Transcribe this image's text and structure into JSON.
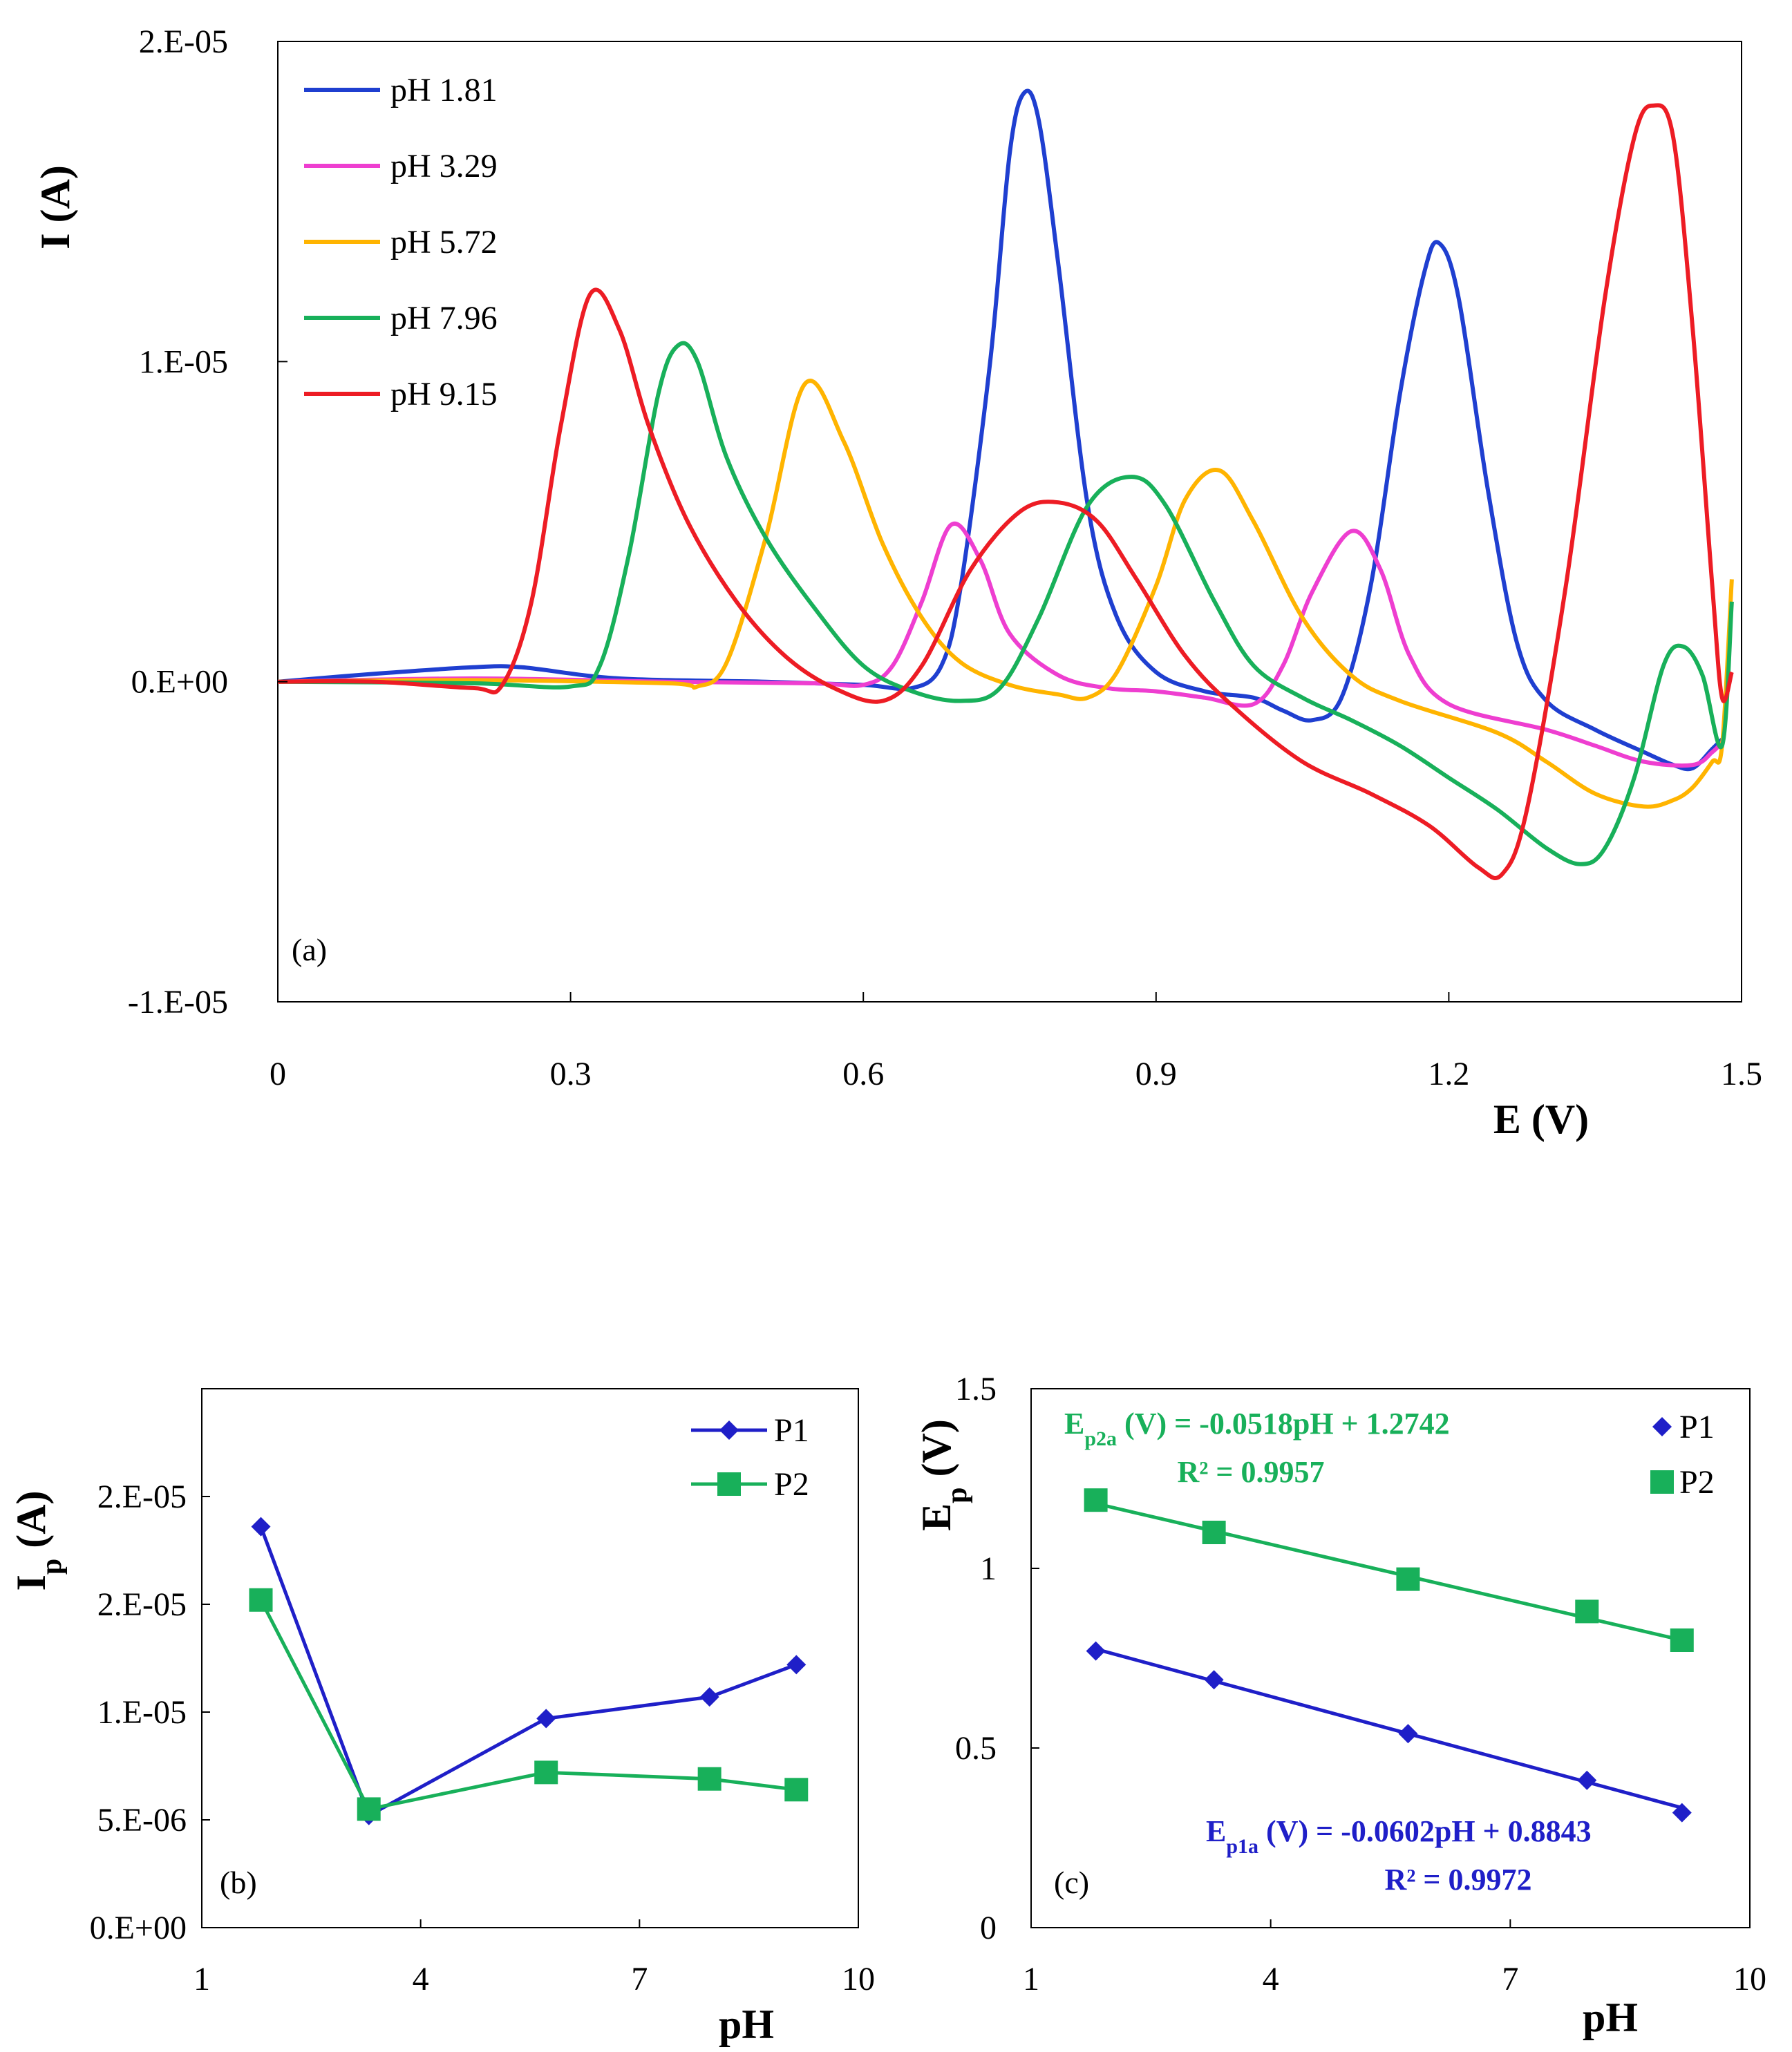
{
  "chart_data": [
    {
      "panel": "(a)",
      "type": "line",
      "xlabel": "E (V)",
      "ylabel": "I (A)",
      "xlim": [
        0,
        1.5
      ],
      "ylim": [
        -1e-05,
        2e-05
      ],
      "x_ticks": [
        "0",
        "0.3",
        "0.6",
        "0.9",
        "1.2",
        "1.5"
      ],
      "y_ticks": [
        "-1.E-05",
        "0.E+00",
        "1.E-05",
        "2.E-05"
      ],
      "x_tick_values": [
        0,
        0.3,
        0.6,
        0.9,
        1.2,
        1.5
      ],
      "y_tick_values": [
        -1e-05,
        0,
        1e-05,
        2e-05
      ],
      "legend_position": "top-left",
      "series": [
        {
          "name": "pH 1.81",
          "color": "#1f3fd0",
          "points": [
            [
              0,
              0
            ],
            [
              0.1,
              2.5e-07
            ],
            [
              0.2,
              4.5e-07
            ],
            [
              0.25,
              4.5e-07
            ],
            [
              0.35,
              1e-07
            ],
            [
              0.5,
              0
            ],
            [
              0.6,
              -1e-07
            ],
            [
              0.65,
              -2e-07
            ],
            [
              0.68,
              5e-07
            ],
            [
              0.7,
              3e-06
            ],
            [
              0.73,
              1e-05
            ],
            [
              0.75,
              1.65e-05
            ],
            [
              0.765,
              1.84e-05
            ],
            [
              0.78,
              1.75e-05
            ],
            [
              0.8,
              1.3e-05
            ],
            [
              0.83,
              5.5e-06
            ],
            [
              0.86,
              2e-06
            ],
            [
              0.9,
              3e-07
            ],
            [
              0.95,
              -3e-07
            ],
            [
              1.0,
              -5e-07
            ],
            [
              1.03,
              -9e-07
            ],
            [
              1.06,
              -1.2e-06
            ],
            [
              1.09,
              -5e-07
            ],
            [
              1.12,
              3e-06
            ],
            [
              1.15,
              9e-06
            ],
            [
              1.175,
              1.28e-05
            ],
            [
              1.19,
              1.37e-05
            ],
            [
              1.21,
              1.2e-05
            ],
            [
              1.24,
              6e-06
            ],
            [
              1.27,
              1.2e-06
            ],
            [
              1.3,
              -6e-07
            ],
            [
              1.35,
              -1.5e-06
            ],
            [
              1.4,
              -2.2e-06
            ],
            [
              1.43,
              -2.6e-06
            ],
            [
              1.45,
              -2.7e-06
            ],
            [
              1.47,
              -2.1e-06
            ],
            [
              1.48,
              -1.8e-06
            ]
          ]
        },
        {
          "name": "pH 3.29",
          "color": "#ee3ed0",
          "points": [
            [
              0,
              0
            ],
            [
              0.2,
              1e-07
            ],
            [
              0.4,
              0
            ],
            [
              0.55,
              -5e-08
            ],
            [
              0.6,
              -1e-07
            ],
            [
              0.63,
              5e-07
            ],
            [
              0.66,
              2.5e-06
            ],
            [
              0.69,
              4.9e-06
            ],
            [
              0.72,
              3.8e-06
            ],
            [
              0.75,
              1.5e-06
            ],
            [
              0.8,
              2e-07
            ],
            [
              0.85,
              -2e-07
            ],
            [
              0.9,
              -3e-07
            ],
            [
              0.95,
              -5e-07
            ],
            [
              1.0,
              -7e-07
            ],
            [
              1.03,
              5e-07
            ],
            [
              1.06,
              2.8e-06
            ],
            [
              1.1,
              4.7e-06
            ],
            [
              1.13,
              3.5e-06
            ],
            [
              1.16,
              8e-07
            ],
            [
              1.2,
              -7e-07
            ],
            [
              1.3,
              -1.5e-06
            ],
            [
              1.35,
              -2e-06
            ],
            [
              1.4,
              -2.5e-06
            ],
            [
              1.45,
              -2.6e-06
            ],
            [
              1.47,
              -2.2e-06
            ],
            [
              1.48,
              -1.9e-06
            ]
          ]
        },
        {
          "name": "pH 5.72",
          "color": "#ffb400",
          "points": [
            [
              0,
              0
            ],
            [
              0.2,
              5e-08
            ],
            [
              0.4,
              -5e-08
            ],
            [
              0.43,
              -1.5e-07
            ],
            [
              0.46,
              6e-07
            ],
            [
              0.5,
              4.5e-06
            ],
            [
              0.54,
              9.3e-06
            ],
            [
              0.58,
              7.5e-06
            ],
            [
              0.62,
              4.3e-06
            ],
            [
              0.66,
              2e-06
            ],
            [
              0.7,
              6e-07
            ],
            [
              0.75,
              -1e-07
            ],
            [
              0.8,
              -4e-07
            ],
            [
              0.83,
              -5e-07
            ],
            [
              0.86,
              3e-07
            ],
            [
              0.9,
              3e-06
            ],
            [
              0.93,
              5.7e-06
            ],
            [
              0.965,
              6.6e-06
            ],
            [
              1.0,
              5e-06
            ],
            [
              1.05,
              2e-06
            ],
            [
              1.1,
              2e-07
            ],
            [
              1.15,
              -6e-07
            ],
            [
              1.25,
              -1.6e-06
            ],
            [
              1.3,
              -2.5e-06
            ],
            [
              1.35,
              -3.5e-06
            ],
            [
              1.4,
              -3.9e-06
            ],
            [
              1.43,
              -3.7e-06
            ],
            [
              1.45,
              -3.3e-06
            ],
            [
              1.47,
              -2.5e-06
            ],
            [
              1.48,
              -2e-06
            ],
            [
              1.49,
              3.2e-06
            ]
          ]
        },
        {
          "name": "pH 7.96",
          "color": "#18b05a",
          "points": [
            [
              0,
              0
            ],
            [
              0.2,
              -5e-08
            ],
            [
              0.3,
              -1.5e-07
            ],
            [
              0.33,
              5e-07
            ],
            [
              0.36,
              4e-06
            ],
            [
              0.39,
              9e-06
            ],
            [
              0.41,
              1.05e-05
            ],
            [
              0.43,
              1e-05
            ],
            [
              0.46,
              7e-06
            ],
            [
              0.5,
              4.5e-06
            ],
            [
              0.55,
              2.3e-06
            ],
            [
              0.6,
              5e-07
            ],
            [
              0.65,
              -3e-07
            ],
            [
              0.7,
              -6e-07
            ],
            [
              0.74,
              -2e-07
            ],
            [
              0.78,
              2e-06
            ],
            [
              0.83,
              5.5e-06
            ],
            [
              0.875,
              6.4e-06
            ],
            [
              0.91,
              5.5e-06
            ],
            [
              0.96,
              2.5e-06
            ],
            [
              1.0,
              5e-07
            ],
            [
              1.05,
              -5e-07
            ],
            [
              1.1,
              -1.2e-06
            ],
            [
              1.15,
              -2e-06
            ],
            [
              1.2,
              -3e-06
            ],
            [
              1.25,
              -4e-06
            ],
            [
              1.3,
              -5.2e-06
            ],
            [
              1.335,
              -5.7e-06
            ],
            [
              1.36,
              -5.2e-06
            ],
            [
              1.39,
              -3e-06
            ],
            [
              1.42,
              5e-07
            ],
            [
              1.44,
              1.1e-06
            ],
            [
              1.46,
              2e-07
            ],
            [
              1.48,
              -2e-06
            ],
            [
              1.49,
              2.5e-06
            ]
          ]
        },
        {
          "name": "pH 9.15",
          "color": "#ed1c24",
          "points": [
            [
              0,
              0
            ],
            [
              0.1,
              0
            ],
            [
              0.2,
              -2e-07
            ],
            [
              0.23,
              -1e-07
            ],
            [
              0.26,
              2.5e-06
            ],
            [
              0.29,
              8e-06
            ],
            [
              0.32,
              1.21e-05
            ],
            [
              0.35,
              1.1e-05
            ],
            [
              0.38,
              8e-06
            ],
            [
              0.42,
              5e-06
            ],
            [
              0.47,
              2.5e-06
            ],
            [
              0.52,
              8e-07
            ],
            [
              0.57,
              -2e-07
            ],
            [
              0.62,
              -6e-07
            ],
            [
              0.66,
              5e-07
            ],
            [
              0.71,
              3.5e-06
            ],
            [
              0.76,
              5.3e-06
            ],
            [
              0.8,
              5.6e-06
            ],
            [
              0.84,
              5e-06
            ],
            [
              0.88,
              3.2e-06
            ],
            [
              0.93,
              8e-07
            ],
            [
              0.98,
              -8e-07
            ],
            [
              1.05,
              -2.5e-06
            ],
            [
              1.12,
              -3.5e-06
            ],
            [
              1.18,
              -4.5e-06
            ],
            [
              1.23,
              -5.8e-06
            ],
            [
              1.255,
              -6e-06
            ],
            [
              1.28,
              -4e-06
            ],
            [
              1.32,
              3e-06
            ],
            [
              1.36,
              1.2e-05
            ],
            [
              1.39,
              1.7e-05
            ],
            [
              1.41,
              1.8e-05
            ],
            [
              1.43,
              1.7e-05
            ],
            [
              1.45,
              1.1e-05
            ],
            [
              1.47,
              3e-06
            ],
            [
              1.48,
              -5e-07
            ],
            [
              1.49,
              3e-07
            ]
          ]
        }
      ]
    },
    {
      "panel": "(b)",
      "type": "line",
      "xlabel": "pH",
      "ylabel": "I",
      "ylabel_sub": "p",
      "ylabel_unit": " (A)",
      "xlim": [
        1,
        10
      ],
      "ylim": [
        0,
        2.5e-05
      ],
      "x_ticks": [
        "1",
        "4",
        "7",
        "10"
      ],
      "y_ticks": [
        "0.E+00",
        "5.E-06",
        "1.E-05",
        "2.E-05",
        "2.E-05"
      ],
      "x_tick_values": [
        1,
        4,
        7,
        10
      ],
      "y_tick_values": [
        0,
        5e-06,
        1e-05,
        1.5e-05,
        2e-05
      ],
      "legend_position": "top-right",
      "series": [
        {
          "name": "P1",
          "marker": "diamond",
          "color": "#1f1fc8",
          "x": [
            1.81,
            3.29,
            5.72,
            7.96,
            9.15
          ],
          "values": [
            1.86e-05,
            5.2e-06,
            9.7e-06,
            1.07e-05,
            1.22e-05
          ]
        },
        {
          "name": "P2",
          "marker": "square",
          "color": "#18b05a",
          "x": [
            1.81,
            3.29,
            5.72,
            7.96,
            9.15
          ],
          "values": [
            1.52e-05,
            5.5e-06,
            7.2e-06,
            6.9e-06,
            6.4e-06
          ]
        }
      ]
    },
    {
      "panel": "(c)",
      "type": "scatter",
      "xlabel": "pH",
      "ylabel": "E",
      "ylabel_sub": "p",
      "ylabel_unit": " (V)",
      "xlim": [
        1,
        10
      ],
      "ylim": [
        0,
        1.5
      ],
      "x_ticks": [
        "1",
        "4",
        "7",
        "10"
      ],
      "y_ticks": [
        "0",
        "0.5",
        "1",
        "1.5"
      ],
      "x_tick_values": [
        1,
        4,
        7,
        10
      ],
      "y_tick_values": [
        0,
        0.5,
        1,
        1.5
      ],
      "legend_position": "top-right",
      "series": [
        {
          "name": "P1",
          "marker": "diamond",
          "color": "#1f1fc8",
          "x": [
            1.81,
            3.29,
            5.72,
            7.96,
            9.15
          ],
          "values": [
            0.77,
            0.69,
            0.54,
            0.41,
            0.32
          ],
          "fit": {
            "slope": -0.0602,
            "intercept": 0.8843
          }
        },
        {
          "name": "P2",
          "marker": "square",
          "color": "#18b05a",
          "x": [
            1.81,
            3.29,
            5.72,
            7.96,
            9.15
          ],
          "values": [
            1.19,
            1.1,
            0.97,
            0.88,
            0.8
          ],
          "fit": {
            "slope": -0.0518,
            "intercept": 1.2742
          }
        }
      ],
      "annotations": {
        "p2_eq_main": "E",
        "p2_eq_sub": "p2a",
        "p2_eq_rest": " (V) = -0.0518pH + 1.2742",
        "p2_r2": "R² = 0.9957",
        "p1_eq_main": "E",
        "p1_eq_sub": "p1a",
        "p1_eq_rest": " (V) = -0.0602pH + 0.8843",
        "p1_r2": "R² = 0.9972"
      }
    }
  ]
}
